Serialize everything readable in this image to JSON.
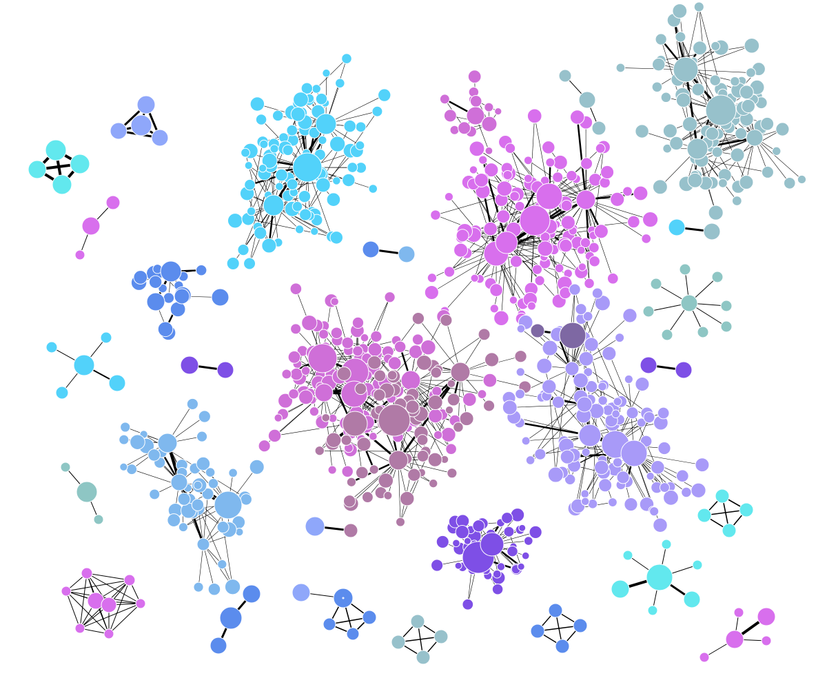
{
  "graph": {
    "type": "network",
    "background": "#ffffff",
    "edge_color": "#000000",
    "palette": [
      "#52d2fa",
      "#62e8ee",
      "#7fb8ee",
      "#5b8ced",
      "#8fa7fa",
      "#a89af8",
      "#d86fed",
      "#cf6fd8",
      "#cf7ab9",
      "#b07aa6",
      "#7e68a3",
      "#7e4fe6",
      "#8ec6c4",
      "#97c1cb"
    ],
    "clusters": [
      "cyan-hub-cluster",
      "magenta-hub-cluster",
      "center-pink-cluster",
      "teal-top-right-cluster",
      "lavender-cluster",
      "purple-ring-cluster",
      "sky-bottom-left-cluster",
      "blue-small-cluster",
      "cyan-square",
      "blue-triangle",
      "pink-star",
      "teal-star",
      "cyan-star",
      "lilac-small",
      "pair-cluster-a",
      "pair-cluster-b",
      "pair-cluster-c",
      "pair-cluster-d",
      "pair-cluster-e"
    ]
  }
}
